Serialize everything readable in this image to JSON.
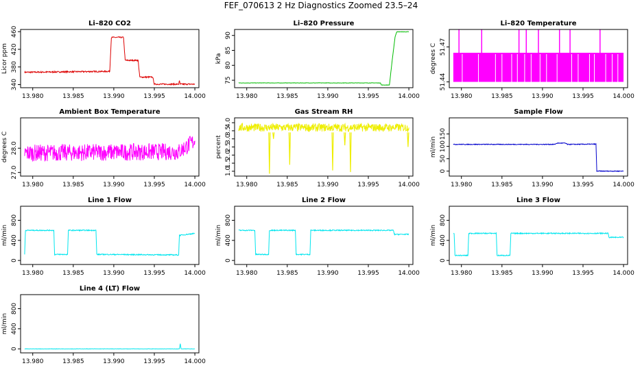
{
  "figure": {
    "title": "FEF_070613  2 Hz Diagnostics Zoomed 23.5–24"
  },
  "chart_data": [
    {
      "type": "line",
      "title": "Li–820 CO2",
      "ylabel": "Licor ppm",
      "xlim": [
        13.9785,
        14.0005
      ],
      "ylim": [
        333,
        465
      ],
      "xticks": [
        13.98,
        13.985,
        13.99,
        13.995,
        14.0
      ],
      "xtick_labels": [
        "13.980",
        "13.985",
        "13.990",
        "13.995",
        "14.000"
      ],
      "yticks": [
        340,
        380,
        420,
        460
      ],
      "ytick_labels": [
        "340",
        "380",
        "420",
        "460"
      ],
      "color": "#dd0000",
      "noise": 1.5,
      "series": [
        {
          "x": [
            13.979,
            13.9895,
            13.9897,
            13.9912,
            13.9914,
            13.993,
            13.9932,
            13.9948,
            13.995,
            13.998,
            13.9981,
            13.9982,
            14.0
          ],
          "y": [
            368,
            370,
            447,
            447,
            395,
            395,
            357,
            357,
            341,
            341,
            348,
            341,
            341
          ]
        }
      ]
    },
    {
      "type": "line",
      "title": "Li–820 Pressure",
      "ylabel": "kPa",
      "xlim": [
        13.9785,
        14.0005
      ],
      "ylim": [
        72.5,
        92
      ],
      "xticks": [
        13.98,
        13.985,
        13.99,
        13.995,
        14.0
      ],
      "xtick_labels": [
        "13.980",
        "13.985",
        "13.990",
        "13.995",
        "14.000"
      ],
      "yticks": [
        75,
        80,
        85,
        90
      ],
      "ytick_labels": [
        "75",
        "80",
        "85",
        "90"
      ],
      "color": "#00bb00",
      "noise": 0.05,
      "series": [
        {
          "x": [
            13.979,
            13.9965,
            13.9966,
            13.9976,
            13.998,
            13.9983,
            13.9985,
            14.0
          ],
          "y": [
            74.1,
            74.1,
            73.4,
            73.4,
            83.0,
            89.5,
            91.2,
            91.2
          ]
        }
      ]
    },
    {
      "type": "area",
      "title": "Li–820 Temperature",
      "ylabel": "degrees C",
      "xlim": [
        13.9785,
        14.0005
      ],
      "ylim": [
        51.435,
        51.485
      ],
      "xticks": [
        13.98,
        13.985,
        13.99,
        13.995,
        14.0
      ],
      "xtick_labels": [
        "13.980",
        "13.985",
        "13.990",
        "13.995",
        "14.000"
      ],
      "yticks": [
        51.44,
        51.47
      ],
      "ytick_labels": [
        "51.44",
        "51.47"
      ],
      "color": "#ff00ff",
      "band": [
        51.44,
        51.465
      ],
      "spikes_x": [
        13.9797,
        13.9825,
        13.9871,
        13.988,
        13.9895,
        13.9921,
        13.9934,
        13.9971
      ],
      "spike_top": 51.485,
      "gaps_x": [
        13.9801,
        13.9821,
        13.9842,
        13.985,
        13.9862,
        13.9869,
        13.9878,
        13.9886,
        13.9897,
        13.9905,
        13.9918,
        13.9936,
        13.9944,
        13.9958,
        13.9964,
        13.9978,
        13.9986,
        13.9993
      ]
    },
    {
      "type": "line",
      "title": "Ambient Box Temperature",
      "ylabel": "degrees C",
      "xlim": [
        13.9785,
        14.0005
      ],
      "ylim": [
        26.85,
        29.25
      ],
      "xticks": [
        13.98,
        13.985,
        13.99,
        13.995,
        14.0
      ],
      "xtick_labels": [
        "13.980",
        "13.985",
        "13.990",
        "13.995",
        "14.000"
      ],
      "yticks": [
        27.0,
        28.0
      ],
      "ytick_labels": [
        "27.0",
        "28.0"
      ],
      "color": "#ff00ff",
      "noise": 0.35,
      "series": [
        {
          "x": [
            13.979,
            13.995,
            13.998,
            14.0
          ],
          "y": [
            27.8,
            27.85,
            27.85,
            28.3
          ]
        }
      ]
    },
    {
      "type": "line",
      "title": "Gas Stream RH",
      "ylabel": "percent",
      "xlim": [
        13.9785,
        14.0005
      ],
      "ylim": [
        0.7,
        4.3
      ],
      "xticks": [
        13.98,
        13.985,
        13.99,
        13.995,
        14.0
      ],
      "xtick_labels": [
        "13.980",
        "13.985",
        "13.990",
        "13.995",
        "14.000"
      ],
      "yticks": [
        1.0,
        1.5,
        2.0,
        2.5,
        3.0,
        3.5,
        4.0
      ],
      "ytick_labels": [
        "1.0",
        "1.5",
        "2.0",
        "2.5",
        "3.0",
        "3.5",
        "4.0"
      ],
      "color": "#eeee00",
      "noise": 0.25,
      "series": [
        {
          "x": [
            13.979,
            14.0
          ],
          "y": [
            3.7,
            3.7
          ]
        }
      ],
      "dips": [
        [
          13.9828,
          0.85
        ],
        [
          13.9833,
          3.0
        ],
        [
          13.9853,
          1.4
        ],
        [
          13.9906,
          1.05
        ],
        [
          13.9921,
          2.6
        ],
        [
          13.9928,
          0.95
        ],
        [
          13.9999,
          2.5
        ]
      ]
    },
    {
      "type": "line",
      "title": "Sample Flow",
      "ylabel": "ml/min",
      "xlim": [
        13.9785,
        14.0005
      ],
      "ylim": [
        -20,
        215
      ],
      "xticks": [
        13.98,
        13.985,
        13.99,
        13.995,
        14.0
      ],
      "xtick_labels": [
        "13.980",
        "13.985",
        "13.990",
        "13.995",
        "14.000"
      ],
      "yticks": [
        0,
        50,
        100,
        150
      ],
      "ytick_labels": [
        "0",
        "50",
        "100",
        "150"
      ],
      "color": "#0000cc",
      "noise": 1.5,
      "series": [
        {
          "x": [
            13.979,
            13.9915,
            13.9918,
            13.9928,
            13.9931,
            13.9966,
            13.9967,
            14.0
          ],
          "y": [
            108,
            108,
            113,
            113,
            108,
            109,
            0,
            0
          ]
        }
      ]
    },
    {
      "type": "line",
      "title": "Line 1 Flow",
      "ylabel": "ml/min",
      "xlim": [
        13.9785,
        14.0005
      ],
      "ylim": [
        -80,
        1080
      ],
      "xticks": [
        13.98,
        13.985,
        13.99,
        13.995,
        14.0
      ],
      "xtick_labels": [
        "13.980",
        "13.985",
        "13.990",
        "13.995",
        "14.000"
      ],
      "yticks": [
        0,
        400,
        800
      ],
      "ytick_labels": [
        "0",
        "400",
        "800"
      ],
      "color": "#00e5ee",
      "noise": 10,
      "series": [
        {
          "x": [
            13.979,
            13.9791,
            13.9826,
            13.9827,
            13.9843,
            13.9844,
            13.9878,
            13.9879,
            13.989,
            13.998,
            13.9981,
            14.0
          ],
          "y": [
            120,
            600,
            600,
            120,
            120,
            600,
            600,
            120,
            120,
            110,
            500,
            540
          ]
        }
      ]
    },
    {
      "type": "line",
      "title": "Line 2 Flow",
      "ylabel": "ml/min",
      "xlim": [
        13.9785,
        14.0005
      ],
      "ylim": [
        -80,
        1080
      ],
      "xticks": [
        13.98,
        13.985,
        13.99,
        13.995,
        14.0
      ],
      "xtick_labels": [
        "13.980",
        "13.985",
        "13.990",
        "13.995",
        "14.000"
      ],
      "yticks": [
        0,
        400,
        800
      ],
      "ytick_labels": [
        "0",
        "400",
        "800"
      ],
      "color": "#00e5ee",
      "noise": 10,
      "series": [
        {
          "x": [
            13.979,
            13.981,
            13.9811,
            13.9827,
            13.9828,
            13.986,
            13.9861,
            13.9878,
            13.9879,
            13.9981,
            13.9982,
            14.0
          ],
          "y": [
            600,
            600,
            120,
            120,
            600,
            600,
            120,
            120,
            600,
            600,
            520,
            520
          ]
        }
      ]
    },
    {
      "type": "line",
      "title": "Line 3 Flow",
      "ylabel": "ml/min",
      "xlim": [
        13.9785,
        14.0005
      ],
      "ylim": [
        -80,
        1080
      ],
      "xticks": [
        13.98,
        13.985,
        13.99,
        13.995,
        14.0
      ],
      "xtick_labels": [
        "13.980",
        "13.985",
        "13.990",
        "13.995",
        "14.000"
      ],
      "yticks": [
        0,
        400,
        800
      ],
      "ytick_labels": [
        "0",
        "400",
        "800"
      ],
      "color": "#00e5ee",
      "noise": 10,
      "series": [
        {
          "x": [
            13.979,
            13.9791,
            13.9792,
            13.9808,
            13.9809,
            13.9843,
            13.9844,
            13.986,
            13.9861,
            13.9981,
            13.9982,
            14.0
          ],
          "y": [
            540,
            540,
            100,
            100,
            540,
            540,
            100,
            100,
            540,
            540,
            460,
            460
          ]
        }
      ]
    },
    {
      "type": "line",
      "title": "Line 4 (LT) Flow",
      "ylabel": "ml/min",
      "xlim": [
        13.9785,
        14.0005
      ],
      "ylim": [
        -80,
        1080
      ],
      "xticks": [
        13.98,
        13.985,
        13.99,
        13.995,
        14.0
      ],
      "xtick_labels": [
        "13.980",
        "13.985",
        "13.990",
        "13.995",
        "14.000"
      ],
      "yticks": [
        0,
        400,
        800
      ],
      "ytick_labels": [
        "0",
        "400",
        "800"
      ],
      "color": "#00e5ee",
      "noise": 3,
      "series": [
        {
          "x": [
            13.979,
            13.9981,
            13.9982,
            13.9983,
            14.0
          ],
          "y": [
            0,
            0,
            100,
            0,
            0
          ]
        }
      ]
    }
  ]
}
